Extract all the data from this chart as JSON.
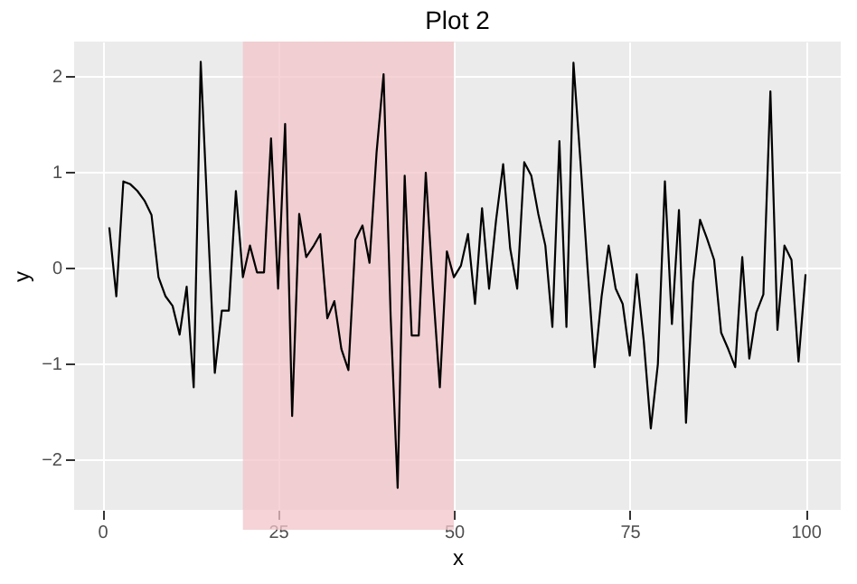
{
  "chart_data": {
    "type": "line",
    "title": "Plot 2",
    "xlabel": "x",
    "ylabel": "y",
    "x": [
      1,
      2,
      3,
      4,
      5,
      6,
      7,
      8,
      9,
      10,
      11,
      12,
      13,
      14,
      15,
      16,
      17,
      18,
      19,
      20,
      21,
      22,
      23,
      24,
      25,
      26,
      27,
      28,
      29,
      30,
      31,
      32,
      33,
      34,
      35,
      36,
      37,
      38,
      39,
      40,
      41,
      42,
      43,
      44,
      45,
      46,
      47,
      48,
      49,
      50,
      51,
      52,
      53,
      54,
      55,
      56,
      57,
      58,
      59,
      60,
      61,
      62,
      63,
      64,
      65,
      66,
      67,
      68,
      69,
      70,
      71,
      72,
      73,
      74,
      75,
      76,
      77,
      78,
      79,
      80,
      81,
      82,
      83,
      84,
      85,
      86,
      87,
      88,
      89,
      90,
      91,
      92,
      93,
      94,
      95,
      96,
      97,
      98,
      99,
      100
    ],
    "series": [
      {
        "color": "#000000",
        "values": [
          0.42,
          -0.3,
          0.9,
          0.87,
          0.8,
          0.7,
          0.55,
          -0.1,
          -0.3,
          -0.4,
          -0.7,
          -0.2,
          -1.25,
          2.15,
          0.5,
          -1.1,
          -0.45,
          -0.45,
          0.8,
          -0.1,
          0.23,
          -0.05,
          -0.05,
          1.35,
          -0.22,
          1.5,
          -1.55,
          0.56,
          0.11,
          0.22,
          0.35,
          -0.53,
          -0.35,
          -0.85,
          -1.07,
          0.29,
          0.44,
          0.05,
          1.2,
          2.02,
          -0.5,
          -2.3,
          0.96,
          -0.71,
          -0.71,
          0.99,
          -0.2,
          -1.25,
          0.17,
          -0.1,
          0.02,
          0.35,
          -0.38,
          0.62,
          -0.22,
          0.5,
          1.08,
          0.2,
          -0.22,
          1.1,
          0.96,
          0.56,
          0.23,
          -0.62,
          1.32,
          -0.62,
          2.14,
          1.1,
          0.0,
          -1.04,
          -0.3,
          0.23,
          -0.22,
          -0.38,
          -0.92,
          -0.07,
          -0.77,
          -1.68,
          -1.01,
          0.9,
          -0.59,
          0.6,
          -1.62,
          -0.16,
          0.5,
          0.3,
          0.08,
          -0.68,
          -0.85,
          -1.04,
          0.11,
          -0.95,
          -0.47,
          -0.28,
          1.84,
          -0.65,
          0.23,
          0.08,
          -0.98,
          -0.07
        ]
      }
    ],
    "bands": [
      {
        "axis": "x",
        "from": 20,
        "to": 50,
        "color": "#f2c4c8"
      }
    ],
    "xlim": [
      -4,
      105
    ],
    "xticks": [
      0,
      25,
      50,
      75,
      100
    ],
    "ylim": [
      -2.53,
      2.36
    ],
    "yticks": [
      -2,
      -1,
      0,
      1,
      2
    ],
    "grid": true,
    "marker": "none",
    "line_style": "solid"
  }
}
